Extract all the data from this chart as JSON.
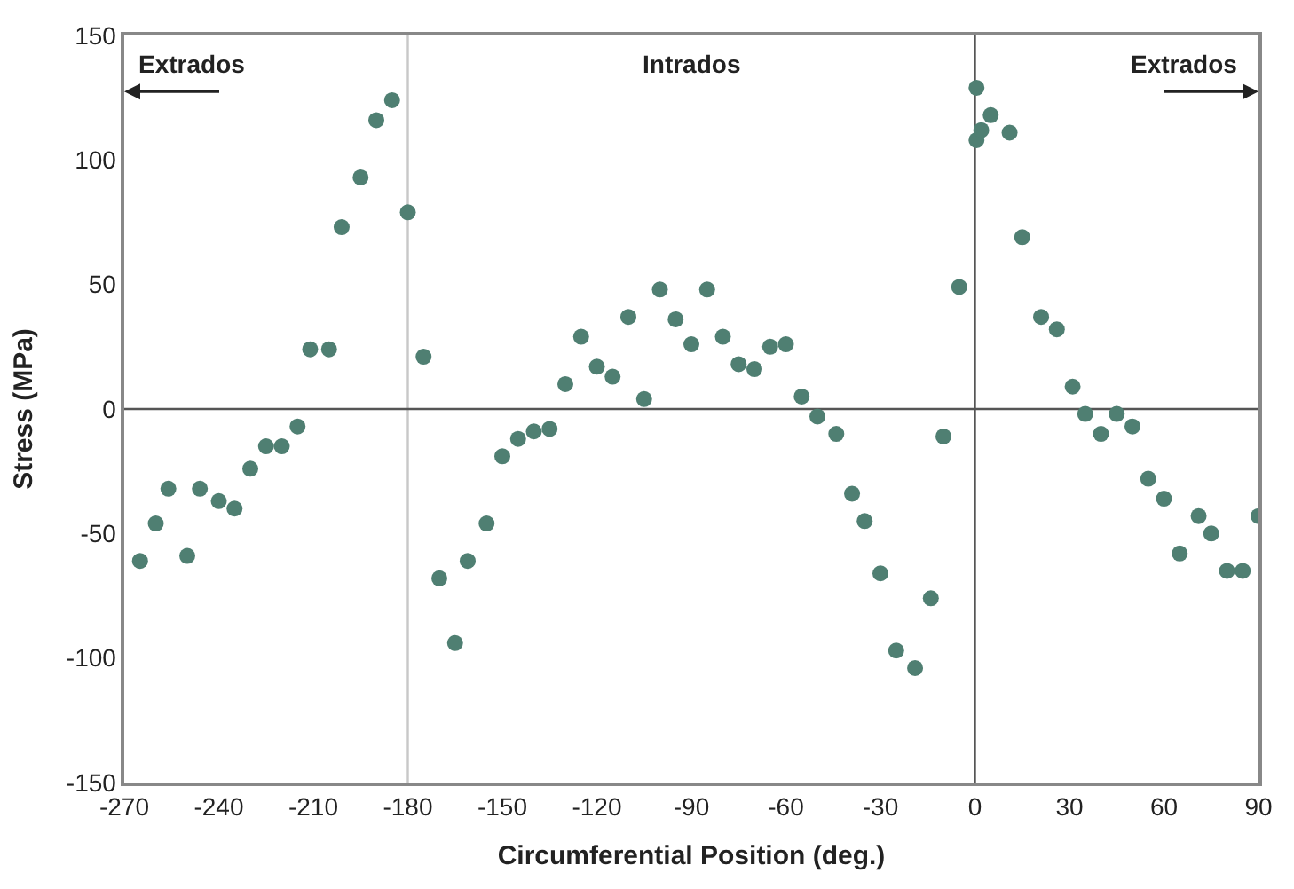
{
  "chart_data": {
    "type": "scatter",
    "xlabel": "Circumferential Position (deg.)",
    "ylabel": "Stress (MPa)",
    "xlim": [
      -270,
      90
    ],
    "xticks": [
      -270,
      -240,
      -210,
      -180,
      -150,
      -120,
      -90,
      -60,
      -30,
      0,
      30,
      60,
      90
    ],
    "ylim": [
      -150,
      150
    ],
    "yticks": [
      -150,
      -100,
      -50,
      0,
      50,
      100,
      150
    ],
    "grid": false,
    "marker": "circle",
    "series": [
      {
        "color": "#4f7f72",
        "x": [
          -265,
          -260,
          -256,
          -250,
          -246,
          -240,
          -235,
          -230,
          -225,
          -220,
          -215,
          -211,
          -205,
          -201,
          -195,
          -190,
          -185,
          -180,
          -175,
          -170,
          -165,
          -161,
          -155,
          -150,
          -145,
          -140,
          -135,
          -130,
          -125,
          -120,
          -115,
          -110,
          -105,
          -100,
          -95,
          -90,
          -85,
          -80,
          -75,
          -70,
          -65,
          -60,
          -55,
          -50,
          -44,
          -39,
          -35,
          -30,
          -25,
          -19,
          -14,
          -10,
          -5,
          0.5,
          0.5,
          2,
          5,
          11,
          15,
          21,
          26,
          31,
          35,
          40,
          45,
          50,
          55,
          60,
          65,
          71,
          75,
          80,
          85,
          90
        ],
        "values": [
          -61,
          -46,
          -32,
          -59,
          -32,
          -37,
          -40,
          -24,
          -15,
          -15,
          -7,
          24,
          24,
          73,
          93,
          116,
          124,
          79,
          21,
          -68,
          -94,
          -61,
          -46,
          -19,
          -12,
          -9,
          -8,
          10,
          29,
          17,
          13,
          37,
          4,
          48,
          36,
          26,
          48,
          29,
          18,
          16,
          25,
          26,
          5,
          -3,
          -10,
          -34,
          -45,
          -66,
          -97,
          -104,
          -76,
          -11,
          49,
          129,
          108,
          112,
          118,
          111,
          69,
          37,
          32,
          9,
          -2,
          -10,
          -2,
          -7,
          -28,
          -36,
          -58,
          -43,
          -50,
          -65,
          -65,
          -43
        ]
      }
    ],
    "ref_lines": [
      {
        "axis": "x",
        "value": -180,
        "color": "#c8c8c8"
      },
      {
        "axis": "x",
        "value": 0,
        "color": "#555555"
      },
      {
        "axis": "y",
        "value": 0,
        "color": "#555555"
      }
    ],
    "annotations": [
      "Extrados",
      "Intrados",
      "Extrados"
    ]
  }
}
